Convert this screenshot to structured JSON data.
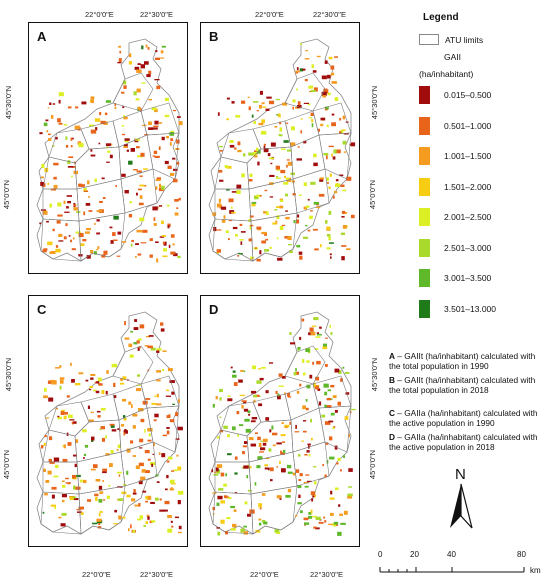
{
  "ticks": {
    "lon_1": "22°0'0\"E",
    "lon_2": "22°30'0\"E",
    "lat_1": "45°30'0\"N",
    "lat_2": "45°0'0\"N"
  },
  "panels": [
    {
      "letter": "A",
      "highlight": [
        "#8b0000",
        "#e3661a",
        "#f39a1c",
        "#f6c716",
        "#d8ef1e",
        "#b6e01a",
        "#7fc31d",
        "#2f8a1d"
      ],
      "weights": [
        0.22,
        0.34,
        0.2,
        0.06,
        0.1,
        0.04,
        0.02,
        0.02
      ]
    },
    {
      "letter": "B",
      "highlight": [],
      "weights": [
        0.22,
        0.22,
        0.16,
        0.06,
        0.2,
        0.08,
        0.04,
        0.02
      ]
    },
    {
      "letter": "C",
      "highlight": [],
      "weights": [
        0.22,
        0.28,
        0.2,
        0.08,
        0.12,
        0.04,
        0.04,
        0.02
      ]
    },
    {
      "letter": "D",
      "highlight": [],
      "weights": [
        0.2,
        0.2,
        0.14,
        0.06,
        0.08,
        0.12,
        0.18,
        0.02
      ]
    }
  ],
  "legend": {
    "title": "Legend",
    "atu_label": "ATU limits",
    "variable": "GAII",
    "unit": "(ha/inhabitant)",
    "classes": [
      {
        "label": "0.015–0.500",
        "color": "#a10d0d"
      },
      {
        "label": "0.501–1.000",
        "color": "#e8641b"
      },
      {
        "label": "1.001–1.500",
        "color": "#f59b1f"
      },
      {
        "label": "1.501–2.000",
        "color": "#f7cd13"
      },
      {
        "label": "2.001–2.500",
        "color": "#dcef24"
      },
      {
        "label": "2.501–3.000",
        "color": "#a8d92b"
      },
      {
        "label": "3.001–3.500",
        "color": "#5fb82a"
      },
      {
        "label": "3.501–13.000",
        "color": "#1f7a1a"
      }
    ]
  },
  "notes": [
    {
      "key": "A",
      "text": " – GAIIt (ha/inhabitant) calculated with the total population in 1990"
    },
    {
      "key": "B",
      "text": " – GAIIt (ha/inhabitant) calculated with the total population in 2018"
    },
    {
      "key": "C",
      "text": " – GAIIa (ha/inhabitant) calculated with the active population in 1990"
    },
    {
      "key": "D",
      "text": " – GAIIa (ha/inhabitant) calculated with the active population in 2018"
    }
  ],
  "north": "N",
  "scale": {
    "labels": [
      "0",
      "20",
      "40",
      "80"
    ],
    "unit": "km"
  }
}
